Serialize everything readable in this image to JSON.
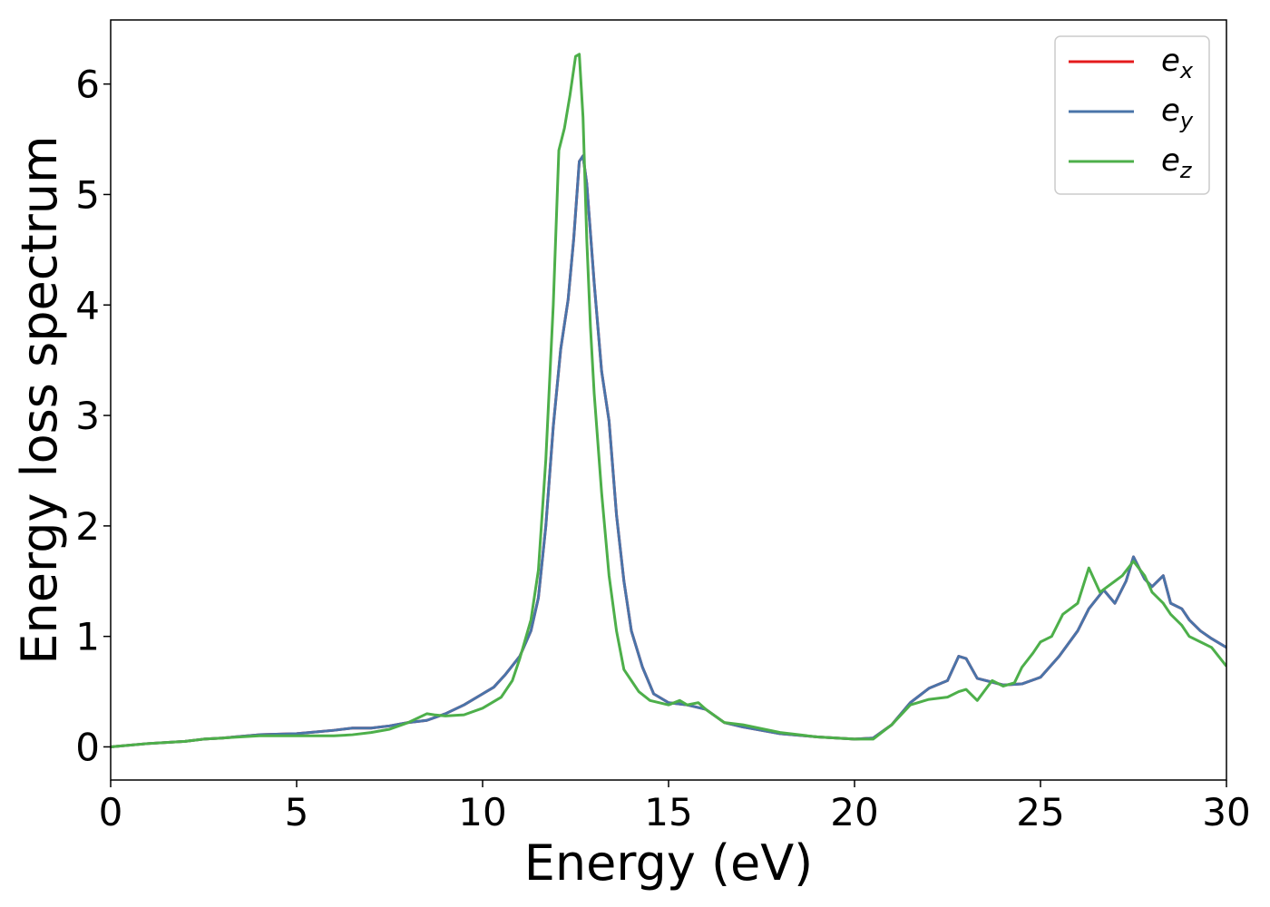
{
  "chart_data": {
    "type": "line",
    "xlabel": "Energy (eV)",
    "ylabel": "Energy loss spectrum",
    "xlim": [
      0,
      30
    ],
    "ylim": [
      -0.3,
      6.58
    ],
    "xticks": [
      0,
      5,
      10,
      15,
      20,
      25,
      30
    ],
    "yticks": [
      0,
      1,
      2,
      3,
      4,
      5,
      6
    ],
    "grid": false,
    "legend_position": "top-right",
    "series": [
      {
        "name": "e_x",
        "label_base": "e",
        "label_sub": "x",
        "color": "#e41a1c",
        "x": [
          0,
          1,
          2,
          2.5,
          3,
          4,
          5,
          6,
          6.5,
          7,
          7.5,
          8,
          8.5,
          9,
          9.5,
          10,
          10.3,
          10.6,
          11,
          11.3,
          11.5,
          11.7,
          11.9,
          12.1,
          12.3,
          12.45,
          12.6,
          12.7,
          12.8,
          13,
          13.2,
          13.4,
          13.6,
          13.8,
          14,
          14.3,
          14.6,
          15,
          15.5,
          16,
          16.5,
          17,
          18,
          19,
          20,
          20.5,
          21,
          21.5,
          22,
          22.5,
          22.8,
          23,
          23.3,
          24,
          24.5,
          25,
          25.5,
          26,
          26.3,
          26.7,
          27,
          27.3,
          27.5,
          27.8,
          28,
          28.3,
          28.5,
          28.8,
          29,
          29.3,
          29.6,
          30
        ],
        "values": [
          0.0,
          0.03,
          0.05,
          0.07,
          0.08,
          0.11,
          0.12,
          0.15,
          0.17,
          0.17,
          0.19,
          0.22,
          0.24,
          0.3,
          0.38,
          0.48,
          0.54,
          0.65,
          0.82,
          1.05,
          1.35,
          2.0,
          2.9,
          3.6,
          4.05,
          4.6,
          5.3,
          5.35,
          5.1,
          4.2,
          3.4,
          2.95,
          2.1,
          1.5,
          1.05,
          0.72,
          0.48,
          0.4,
          0.38,
          0.34,
          0.22,
          0.18,
          0.12,
          0.09,
          0.07,
          0.08,
          0.2,
          0.4,
          0.53,
          0.6,
          0.82,
          0.8,
          0.62,
          0.56,
          0.57,
          0.63,
          0.82,
          1.05,
          1.25,
          1.42,
          1.3,
          1.5,
          1.72,
          1.52,
          1.45,
          1.55,
          1.3,
          1.25,
          1.15,
          1.05,
          0.98,
          0.9
        ]
      },
      {
        "name": "e_y",
        "label_base": "e",
        "label_sub": "y",
        "color": "#4a74a9",
        "x": [
          0,
          1,
          2,
          2.5,
          3,
          4,
          5,
          6,
          6.5,
          7,
          7.5,
          8,
          8.5,
          9,
          9.5,
          10,
          10.3,
          10.6,
          11,
          11.3,
          11.5,
          11.7,
          11.9,
          12.1,
          12.3,
          12.45,
          12.6,
          12.7,
          12.8,
          13,
          13.2,
          13.4,
          13.6,
          13.8,
          14,
          14.3,
          14.6,
          15,
          15.5,
          16,
          16.5,
          17,
          18,
          19,
          20,
          20.5,
          21,
          21.5,
          22,
          22.5,
          22.8,
          23,
          23.3,
          24,
          24.5,
          25,
          25.5,
          26,
          26.3,
          26.7,
          27,
          27.3,
          27.5,
          27.8,
          28,
          28.3,
          28.5,
          28.8,
          29,
          29.3,
          29.6,
          30
        ],
        "values": [
          0.0,
          0.03,
          0.05,
          0.07,
          0.08,
          0.11,
          0.12,
          0.15,
          0.17,
          0.17,
          0.19,
          0.22,
          0.24,
          0.3,
          0.38,
          0.48,
          0.54,
          0.65,
          0.82,
          1.05,
          1.35,
          2.0,
          2.9,
          3.6,
          4.05,
          4.6,
          5.3,
          5.35,
          5.1,
          4.2,
          3.4,
          2.95,
          2.1,
          1.5,
          1.05,
          0.72,
          0.48,
          0.4,
          0.38,
          0.34,
          0.22,
          0.18,
          0.12,
          0.09,
          0.07,
          0.08,
          0.2,
          0.4,
          0.53,
          0.6,
          0.82,
          0.8,
          0.62,
          0.56,
          0.57,
          0.63,
          0.82,
          1.05,
          1.25,
          1.42,
          1.3,
          1.5,
          1.72,
          1.52,
          1.45,
          1.55,
          1.3,
          1.25,
          1.15,
          1.05,
          0.98,
          0.9
        ]
      },
      {
        "name": "e_z",
        "label_base": "e",
        "label_sub": "z",
        "color": "#4daf4a",
        "x": [
          0,
          1,
          2,
          2.5,
          3,
          4,
          5,
          6,
          6.5,
          7,
          7.5,
          8,
          8.5,
          8.7,
          9,
          9.5,
          10,
          10.5,
          10.8,
          11,
          11.3,
          11.5,
          11.7,
          11.9,
          12.05,
          12.2,
          12.35,
          12.5,
          12.6,
          12.7,
          12.8,
          12.9,
          13,
          13.2,
          13.4,
          13.6,
          13.8,
          14,
          14.2,
          14.5,
          15,
          15.3,
          15.5,
          15.8,
          16,
          16.5,
          17,
          18,
          19,
          20,
          20.5,
          21,
          21.5,
          22,
          22.5,
          22.8,
          23,
          23.3,
          23.7,
          24,
          24.3,
          24.5,
          24.8,
          25,
          25.3,
          25.6,
          26,
          26.3,
          26.6,
          26.8,
          27,
          27.2,
          27.5,
          27.8,
          28,
          28.3,
          28.5,
          28.8,
          29,
          29.3,
          29.6,
          30
        ],
        "values": [
          0.0,
          0.03,
          0.05,
          0.07,
          0.08,
          0.1,
          0.1,
          0.1,
          0.11,
          0.13,
          0.16,
          0.22,
          0.3,
          0.29,
          0.28,
          0.29,
          0.35,
          0.45,
          0.6,
          0.8,
          1.15,
          1.6,
          2.6,
          4.0,
          5.4,
          5.6,
          5.9,
          6.25,
          6.27,
          5.7,
          4.6,
          3.8,
          3.2,
          2.3,
          1.55,
          1.05,
          0.7,
          0.6,
          0.5,
          0.42,
          0.38,
          0.42,
          0.38,
          0.4,
          0.34,
          0.22,
          0.2,
          0.13,
          0.09,
          0.07,
          0.07,
          0.2,
          0.38,
          0.43,
          0.45,
          0.5,
          0.52,
          0.42,
          0.6,
          0.55,
          0.58,
          0.72,
          0.85,
          0.95,
          1.0,
          1.2,
          1.3,
          1.62,
          1.4,
          1.45,
          1.5,
          1.55,
          1.68,
          1.55,
          1.4,
          1.3,
          1.2,
          1.1,
          1.0,
          0.95,
          0.9,
          0.73
        ]
      }
    ]
  }
}
